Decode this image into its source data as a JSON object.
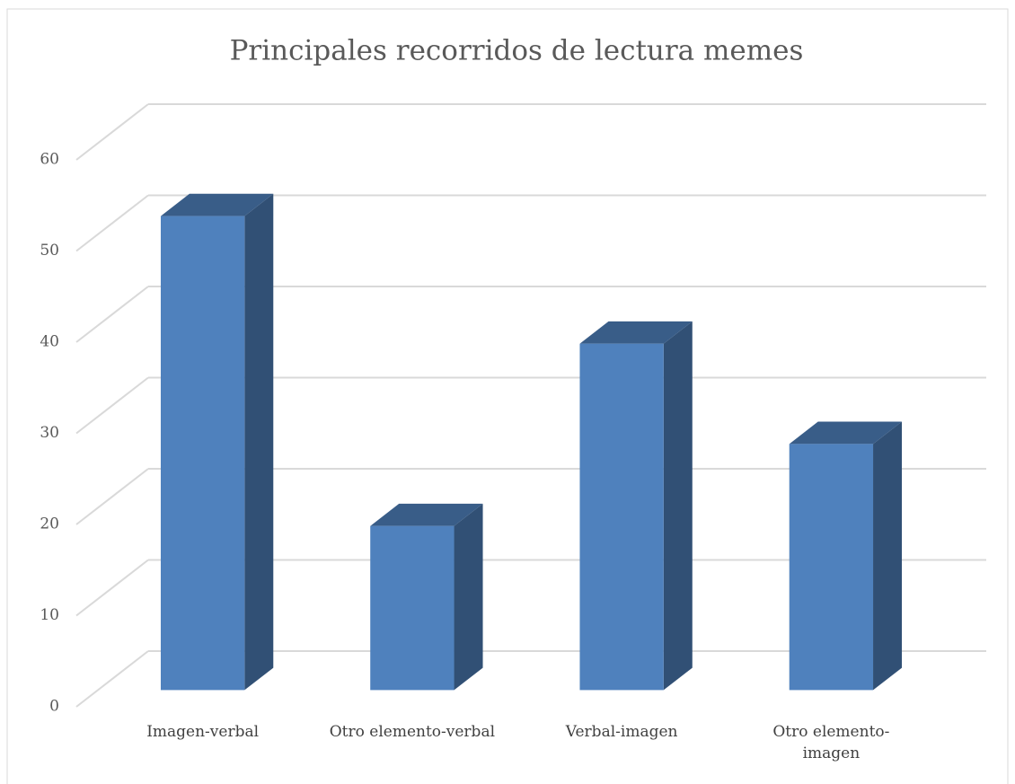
{
  "chart_data": {
    "type": "bar3d",
    "title": "Principales recorridos de lectura memes",
    "categories": [
      "Imagen-verbal",
      "Otro elemento-verbal",
      "Verbal-imagen",
      "Otro elemento-imagen"
    ],
    "values": [
      52,
      18,
      38,
      27
    ],
    "color": "#4f81bd",
    "ylim": [
      0,
      60
    ],
    "yticks": [
      0,
      10,
      20,
      30,
      40,
      50,
      60
    ],
    "grid": true
  }
}
